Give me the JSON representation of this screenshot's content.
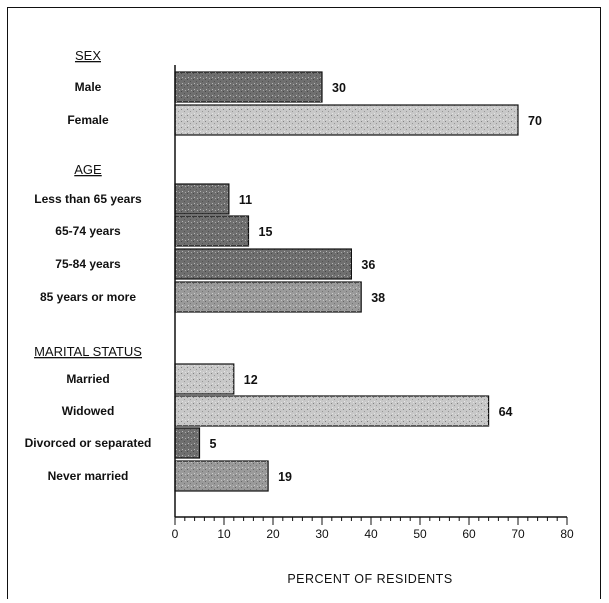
{
  "chart_data": {
    "type": "bar",
    "orientation": "horizontal",
    "xlabel": "PERCENT OF RESIDENTS",
    "xlim": [
      0,
      80
    ],
    "xticks": [
      "0",
      "10",
      "20",
      "30",
      "40",
      "50",
      "60",
      "70",
      "80"
    ],
    "groups": [
      {
        "title": "SEX",
        "items": [
          {
            "label": "Male",
            "value": 30,
            "shade": "dark"
          },
          {
            "label": "Female",
            "value": 70,
            "shade": "light"
          }
        ]
      },
      {
        "title": "AGE",
        "items": [
          {
            "label": "Less than 65 years",
            "value": 11,
            "shade": "dark"
          },
          {
            "label": "65-74 years",
            "value": 15,
            "shade": "dark"
          },
          {
            "label": "75-84 years",
            "value": 36,
            "shade": "dark"
          },
          {
            "label": "85 years or more",
            "value": 38,
            "shade": "medium"
          }
        ]
      },
      {
        "title": "MARITAL STATUS",
        "items": [
          {
            "label": "Married",
            "value": 12,
            "shade": "light"
          },
          {
            "label": "Widowed",
            "value": 64,
            "shade": "light"
          },
          {
            "label": "Divorced or separated",
            "value": 5,
            "shade": "dark"
          },
          {
            "label": "Never married",
            "value": 19,
            "shade": "medium"
          }
        ]
      }
    ]
  },
  "colors": {
    "dark": "#6f6f6f",
    "medium": "#9a9a9a",
    "light": "#c8c8c8",
    "ink": "#111111"
  }
}
